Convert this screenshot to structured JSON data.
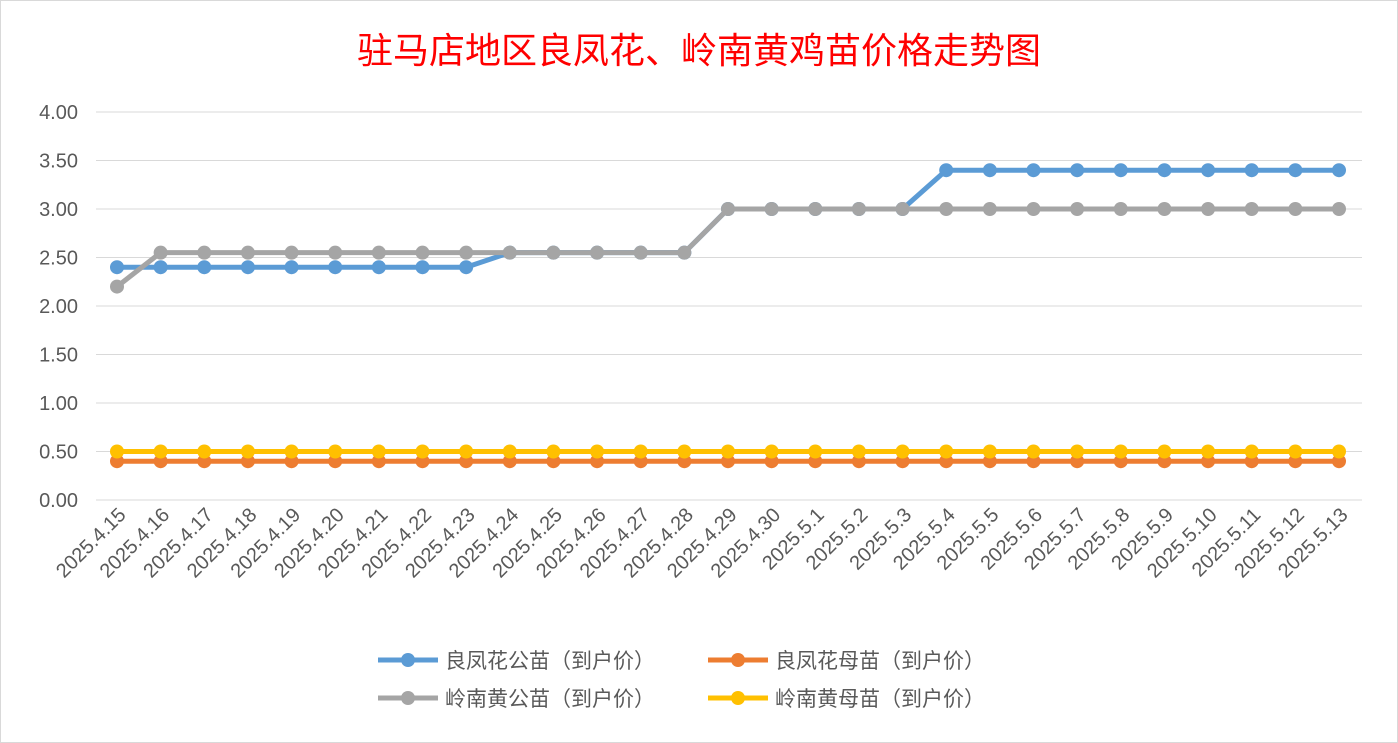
{
  "chart_data": {
    "type": "line",
    "title": "驻马店地区良凤花、岭南黄鸡苗价格走势图",
    "xlabel": "",
    "ylabel": "",
    "ylim": [
      0,
      4
    ],
    "yticks": [
      "0.00",
      "0.50",
      "1.00",
      "1.50",
      "2.00",
      "2.50",
      "3.00",
      "3.50",
      "4.00"
    ],
    "grid": true,
    "legend_position": "bottom",
    "categories": [
      "2025.4.15",
      "2025.4.16",
      "2025.4.17",
      "2025.4.18",
      "2025.4.19",
      "2025.4.20",
      "2025.4.21",
      "2025.4.22",
      "2025.4.23",
      "2025.4.24",
      "2025.4.25",
      "2025.4.26",
      "2025.4.27",
      "2025.4.28",
      "2025.4.29",
      "2025.4.30",
      "2025.5.1",
      "2025.5.2",
      "2025.5.3",
      "2025.5.4",
      "2025.5.5",
      "2025.5.6",
      "2025.5.7",
      "2025.5.8",
      "2025.5.9",
      "2025.5.10",
      "2025.5.11",
      "2025.5.12",
      "2025.5.13"
    ],
    "series": [
      {
        "name": "良凤花公苗（到户价）",
        "color": "#5b9bd5",
        "values": [
          2.4,
          2.4,
          2.4,
          2.4,
          2.4,
          2.4,
          2.4,
          2.4,
          2.4,
          2.55,
          2.55,
          2.55,
          2.55,
          2.55,
          3.0,
          3.0,
          3.0,
          3.0,
          3.0,
          3.4,
          3.4,
          3.4,
          3.4,
          3.4,
          3.4,
          3.4,
          3.4,
          3.4,
          3.4
        ]
      },
      {
        "name": "良凤花母苗（到户价）",
        "color": "#ed7d31",
        "values": [
          0.4,
          0.4,
          0.4,
          0.4,
          0.4,
          0.4,
          0.4,
          0.4,
          0.4,
          0.4,
          0.4,
          0.4,
          0.4,
          0.4,
          0.4,
          0.4,
          0.4,
          0.4,
          0.4,
          0.4,
          0.4,
          0.4,
          0.4,
          0.4,
          0.4,
          0.4,
          0.4,
          0.4,
          0.4
        ]
      },
      {
        "name": "岭南黄公苗（到户价）",
        "color": "#a5a5a5",
        "values": [
          2.2,
          2.55,
          2.55,
          2.55,
          2.55,
          2.55,
          2.55,
          2.55,
          2.55,
          2.55,
          2.55,
          2.55,
          2.55,
          2.55,
          3.0,
          3.0,
          3.0,
          3.0,
          3.0,
          3.0,
          3.0,
          3.0,
          3.0,
          3.0,
          3.0,
          3.0,
          3.0,
          3.0,
          3.0
        ]
      },
      {
        "name": "岭南黄母苗（到户价）",
        "color": "#ffc000",
        "values": [
          0.5,
          0.5,
          0.5,
          0.5,
          0.5,
          0.5,
          0.5,
          0.5,
          0.5,
          0.5,
          0.5,
          0.5,
          0.5,
          0.5,
          0.5,
          0.5,
          0.5,
          0.5,
          0.5,
          0.5,
          0.5,
          0.5,
          0.5,
          0.5,
          0.5,
          0.5,
          0.5,
          0.5,
          0.5
        ]
      }
    ]
  }
}
